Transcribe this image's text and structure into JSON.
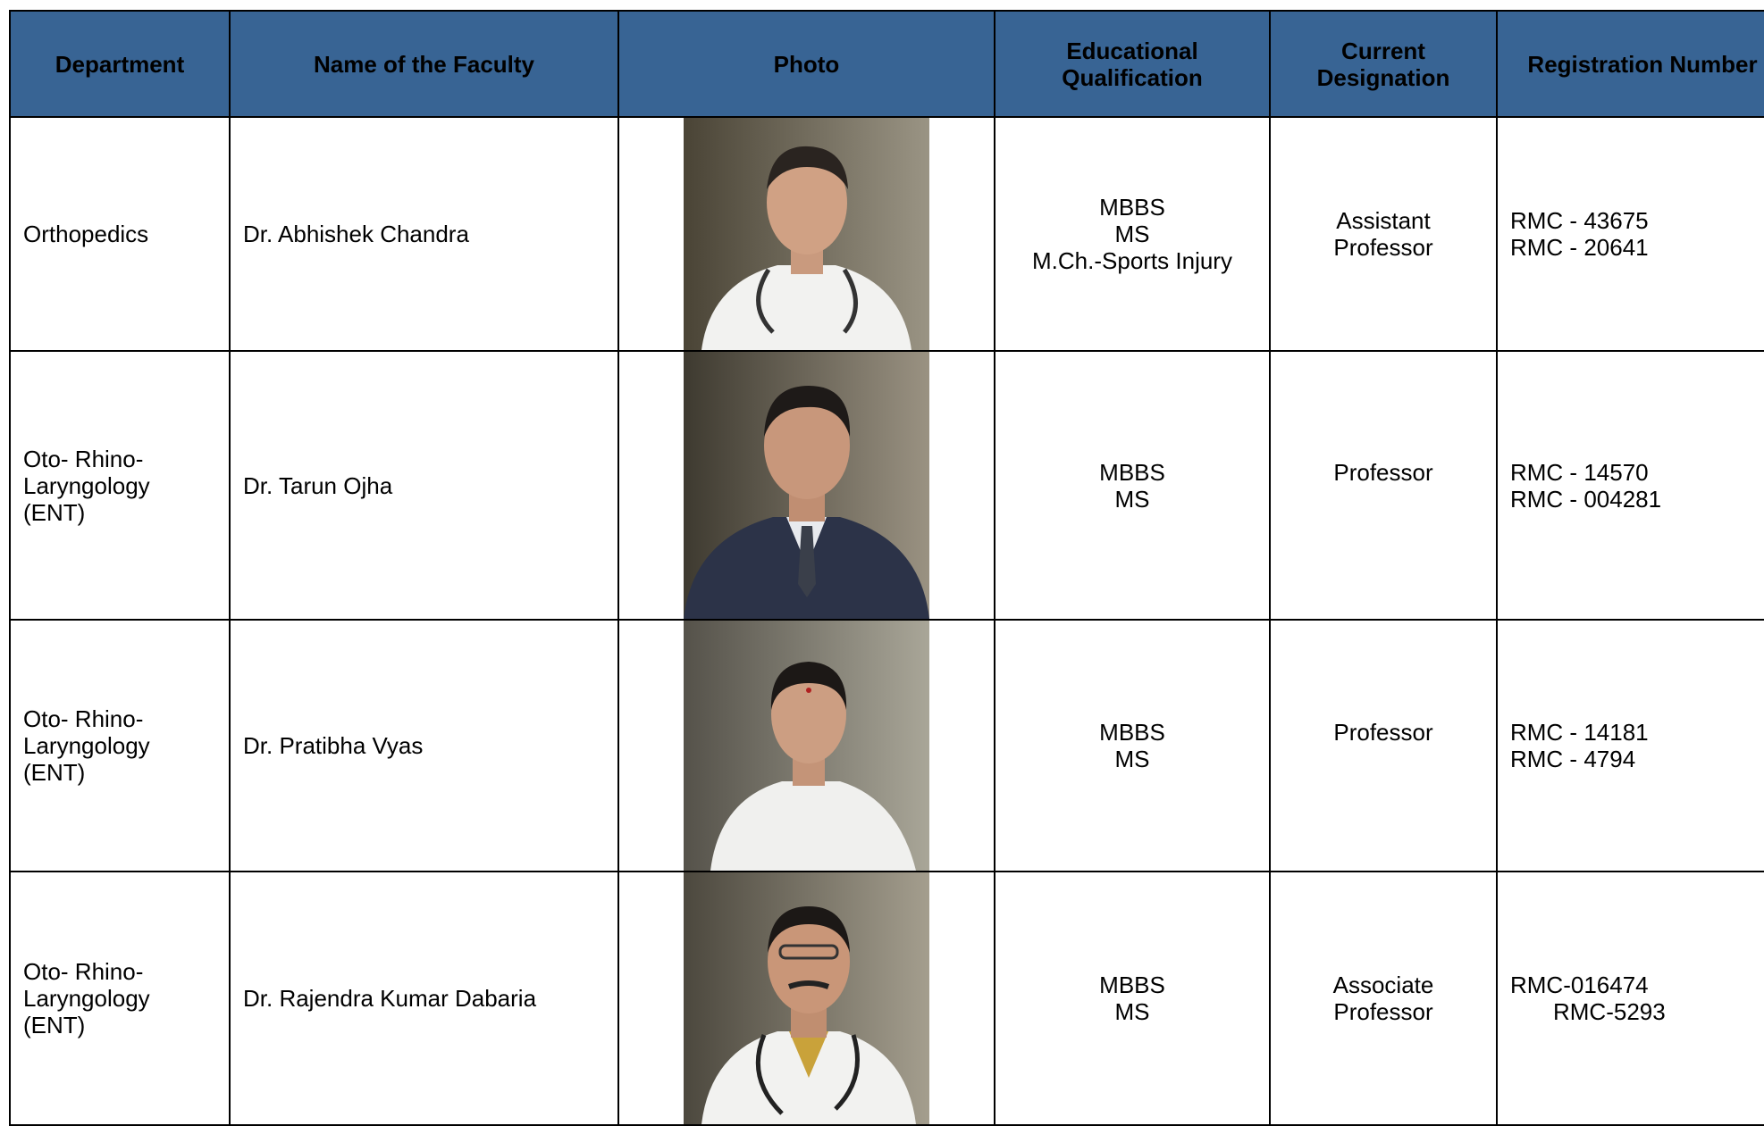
{
  "table": {
    "header": [
      "Department",
      "Name of the Faculty",
      "Photo",
      "Educational Qualification",
      "Current Designation",
      "Registration Number"
    ],
    "rows": [
      {
        "department": [
          "Orthopedics"
        ],
        "name": "Dr. Abhishek Chandra",
        "qualification": [
          "MBBS",
          "MS",
          "M.Ch.-Sports Injury"
        ],
        "designation": [
          "Assistant",
          "Professor"
        ],
        "registration": [
          "RMC - 43675",
          "RMC - 20641"
        ]
      },
      {
        "department": [
          "Oto- Rhino-",
          "Laryngology",
          "(ENT)"
        ],
        "name": "Dr. Tarun Ojha",
        "qualification": [
          "MBBS",
          "MS"
        ],
        "designation": [
          "Professor"
        ],
        "registration": [
          "RMC - 14570",
          "RMC - 004281"
        ]
      },
      {
        "department": [
          "Oto- Rhino-",
          "Laryngology",
          "(ENT)"
        ],
        "name": "Dr. Pratibha Vyas",
        "qualification": [
          "MBBS",
          "MS"
        ],
        "designation": [
          "Professor"
        ],
        "registration": [
          "RMC - 14181",
          "RMC - 4794"
        ]
      },
      {
        "department": [
          "Oto- Rhino-",
          "Laryngology",
          "(ENT)"
        ],
        "name": "Dr. Rajendra Kumar Dabaria",
        "qualification": [
          "MBBS",
          "MS"
        ],
        "designation": [
          "Associate",
          "Professor"
        ],
        "registration": [
          "RMC-016474",
          "RMC-5293"
        ]
      }
    ]
  }
}
